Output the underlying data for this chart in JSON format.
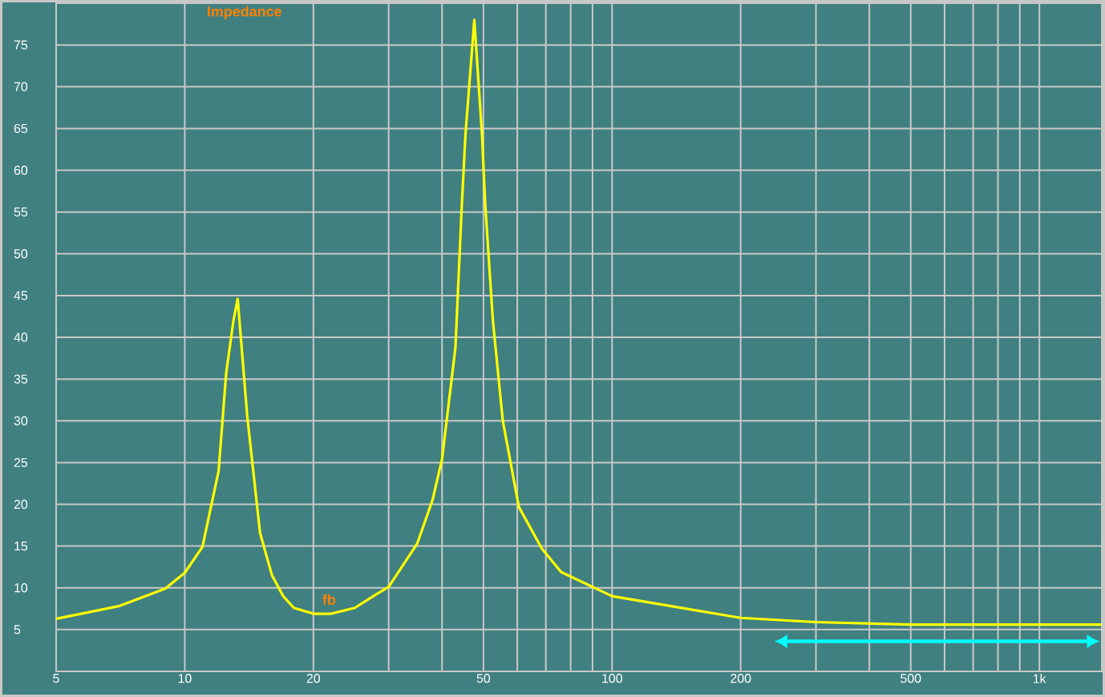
{
  "chart_data": {
    "type": "line",
    "title": "Impedance",
    "log": "x",
    "grid": true,
    "xlim": [
      5,
      1400
    ],
    "ylim": [
      0,
      80
    ],
    "xticks": [
      5,
      10,
      20,
      {
        "value": 30,
        "label": null
      },
      {
        "value": 40,
        "label": null
      },
      50,
      {
        "value": 60,
        "label": null
      },
      {
        "value": 70,
        "label": null
      },
      {
        "value": 80,
        "label": null
      },
      {
        "value": 90,
        "label": null
      },
      100,
      200,
      {
        "value": 300,
        "label": null
      },
      {
        "value": 400,
        "label": null
      },
      500,
      {
        "value": 600,
        "label": null
      },
      {
        "value": 700,
        "label": null
      },
      {
        "value": 800,
        "label": null
      },
      {
        "value": 900,
        "label": null
      },
      {
        "value": 1000,
        "label": "1k"
      }
    ],
    "yticks": [
      5,
      10,
      15,
      20,
      25,
      30,
      35,
      40,
      45,
      50,
      55,
      60,
      65,
      70,
      75
    ],
    "x": [
      5,
      7,
      9,
      10,
      11,
      12,
      12.5,
      13,
      13.3,
      14,
      15,
      16,
      17,
      18,
      20,
      22,
      25,
      28,
      30,
      35,
      38,
      40,
      43,
      44.5,
      45.4,
      47.6,
      49.6,
      50.5,
      52.6,
      55.5,
      60.5,
      68.5,
      76,
      100,
      200,
      300,
      500,
      1400
    ],
    "series": [
      {
        "color": "#ffff00",
        "values": [
          6.3,
          7.8,
          9.9,
          11.8,
          14.9,
          24,
          35.7,
          42,
          44.6,
          30.6,
          16.6,
          11.5,
          9.0,
          7.6,
          6.9,
          6.9,
          7.6,
          9.2,
          10.1,
          15.3,
          20.5,
          25.4,
          38.8,
          55.8,
          64.4,
          78,
          64.4,
          55.8,
          42.1,
          30,
          19.7,
          14.7,
          11.9,
          9.0,
          6.4,
          5.9,
          5.6,
          5.6
        ]
      }
    ],
    "annotations": [
      "fb"
    ]
  }
}
